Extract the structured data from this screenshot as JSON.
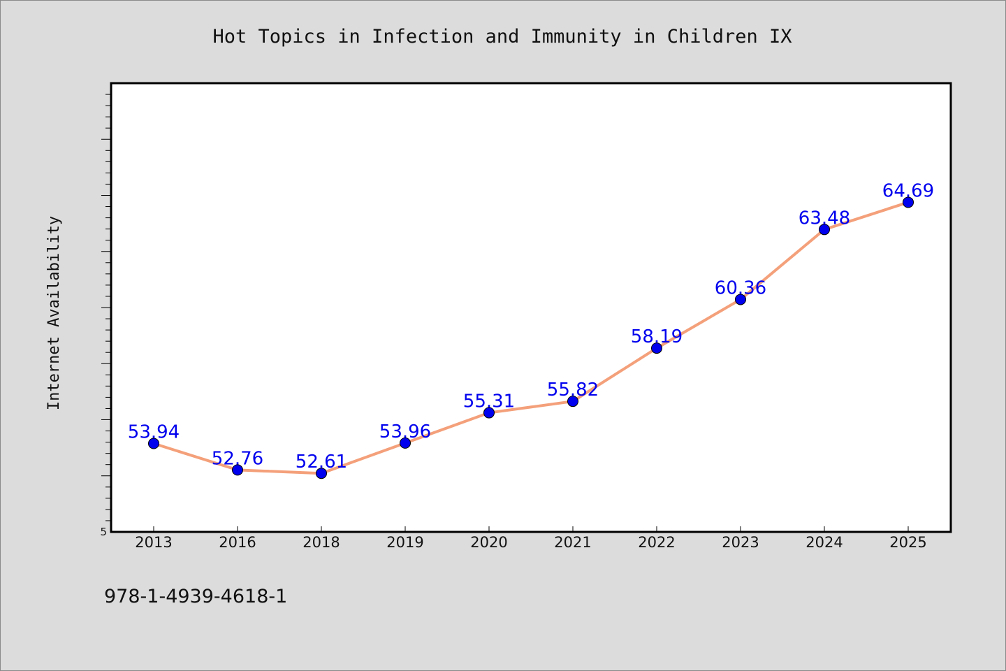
{
  "chart_data": {
    "type": "line",
    "title": "Hot Topics in Infection and Immunity in Children IX",
    "ylabel": "Internet Availability",
    "xlabel": "",
    "categories": [
      "2013",
      "2016",
      "2018",
      "2019",
      "2020",
      "2021",
      "2022",
      "2023",
      "2024",
      "2025"
    ],
    "series": [
      {
        "values": [
          53.94,
          52.76,
          52.61,
          53.96,
          55.31,
          55.82,
          58.19,
          60.36,
          63.48,
          64.69
        ],
        "line_color": "#f4a07a",
        "marker_color": "#0000ee"
      }
    ],
    "data_labels": [
      "53.94",
      "52.76",
      "52.61",
      "53.96",
      "55.31",
      "55.82",
      "58.19",
      "60.36",
      "63.48",
      "64.69"
    ],
    "y_tick_labels": [
      "5"
    ],
    "ylim": [
      50.0,
      70.0
    ],
    "grid": false,
    "legend": "none",
    "background_color": "#dcdcdc",
    "plot_background_color": "#ffffff"
  },
  "footer": {
    "isbn": "978-1-4939-4618-1"
  }
}
